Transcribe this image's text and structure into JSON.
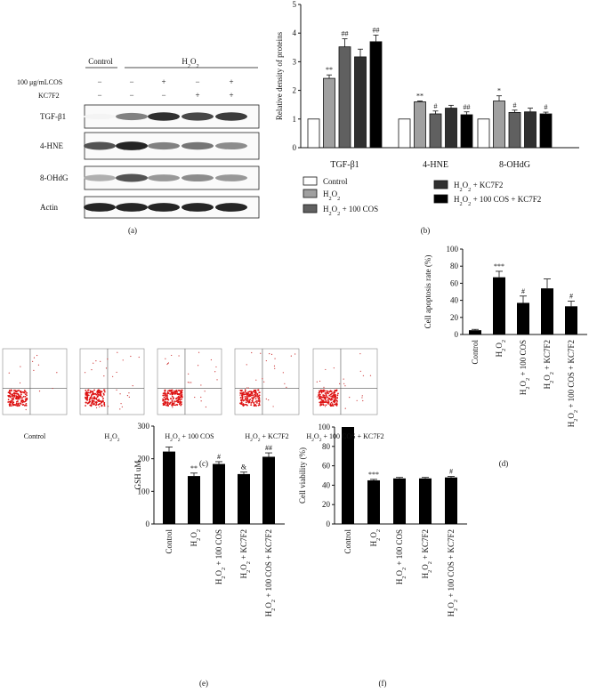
{
  "panel_labels": {
    "a": "(a)",
    "b": "(b)",
    "c": "(c)",
    "d": "(d)",
    "e": "(e)",
    "f": "(f)"
  },
  "blot": {
    "header_control": "Control",
    "header_h2o2": "H",
    "header_h2o2_sub": "2",
    "header_h2o2_o": "O",
    "header_h2o2_sub2": "2",
    "row1_label": "100 μg/mLCOS",
    "row2_label": "KC7F2",
    "row1_signs": [
      "−",
      "−",
      "+",
      "−",
      "+"
    ],
    "row2_signs": [
      "−",
      "−",
      "−",
      "+",
      "+"
    ],
    "bands": [
      "TGF-β1",
      "4-HNE",
      "8-OHdG",
      "Actin"
    ]
  },
  "chart_data": [
    {
      "id": "b",
      "type": "bar",
      "ylabel": "Relative density of proteins",
      "ylim": [
        0,
        5
      ],
      "yticks": [
        0,
        1,
        2,
        3,
        4,
        5
      ],
      "categories": [
        "TGF-β1",
        "4-HNE",
        "8-OHdG"
      ],
      "series": [
        {
          "name": "Control",
          "color": "#ffffff",
          "values": [
            1.0,
            1.0,
            1.0
          ],
          "errors": [
            0,
            0,
            0
          ],
          "marks": [
            "",
            "",
            ""
          ]
        },
        {
          "name": "H2O2",
          "color": "#a0a0a0",
          "values": [
            2.42,
            1.6,
            1.63
          ],
          "errors": [
            0.12,
            0.03,
            0.18
          ],
          "marks": [
            "**",
            "**",
            "*"
          ]
        },
        {
          "name": "H2O2 + 100 COS",
          "color": "#606060",
          "values": [
            3.52,
            1.18,
            1.23
          ],
          "errors": [
            0.28,
            0.1,
            0.08
          ],
          "marks": [
            "##",
            "#",
            "#"
          ]
        },
        {
          "name": "H2O2 + KC7F2",
          "color": "#303030",
          "values": [
            3.17,
            1.38,
            1.25
          ],
          "errors": [
            0.27,
            0.1,
            0.13
          ],
          "marks": [
            "",
            "",
            ""
          ]
        },
        {
          "name": "H2O2 + 100 COS + KC7F2",
          "color": "#000000",
          "values": [
            3.7,
            1.15,
            1.18
          ],
          "errors": [
            0.23,
            0.1,
            0.06
          ],
          "marks": [
            "##",
            "##",
            "#"
          ]
        }
      ],
      "legend_text": [
        "Control",
        "H2O2",
        "H2O2 + 100 COS",
        "H2O2 + KC7F2",
        "H2O2 + 100 COS + KC7F2"
      ]
    },
    {
      "id": "d",
      "type": "bar",
      "ylabel": "Cell apoptosis rate (%)",
      "ylim": [
        0,
        100
      ],
      "yticks": [
        0,
        20,
        40,
        60,
        80,
        100
      ],
      "categories": [
        "Control",
        "H2O2",
        "H2O2 + 100 COS",
        "H2O2 + KC7F2",
        "H2O2 + 100 COS + KC7F2"
      ],
      "values": [
        5,
        67,
        37,
        54,
        33
      ],
      "errors": [
        1,
        7,
        8,
        11,
        6
      ],
      "marks": [
        "",
        "***",
        "#",
        "",
        "#"
      ]
    },
    {
      "id": "e",
      "type": "bar",
      "ylabel": "GSH uM",
      "ylim": [
        0,
        300
      ],
      "yticks": [
        0,
        100,
        200,
        300
      ],
      "categories": [
        "Control",
        "H2O2",
        "H2O2 + 100 COS",
        "H2O2 + KC7F2",
        "H2O2 + 100 COS + KC7F2"
      ],
      "values": [
        222,
        147,
        184,
        153,
        206
      ],
      "errors": [
        14,
        9,
        7,
        6,
        12
      ],
      "marks": [
        "",
        "**",
        "#",
        "&",
        "##"
      ]
    },
    {
      "id": "f",
      "type": "bar",
      "ylabel": "Cell viability (%)",
      "ylim": [
        0,
        100
      ],
      "yticks": [
        0,
        20,
        40,
        60,
        80,
        100
      ],
      "categories": [
        "Control",
        "H2O2",
        "H2O2 + 100 COS",
        "H2O2 + KC7F2",
        "H2O2 + 100 COS + KC7F2"
      ],
      "values": [
        100,
        45,
        47,
        47,
        48
      ],
      "errors": [
        0,
        1,
        1,
        1,
        1
      ],
      "marks": [
        "",
        "***",
        "",
        "",
        "#"
      ]
    }
  ],
  "flow": {
    "labels": [
      "Control",
      "H2O2",
      "H2O2 + 100 COS",
      "H2O2 + KC7F2",
      "H2O2 + 100 COS + KC7F2"
    ]
  }
}
